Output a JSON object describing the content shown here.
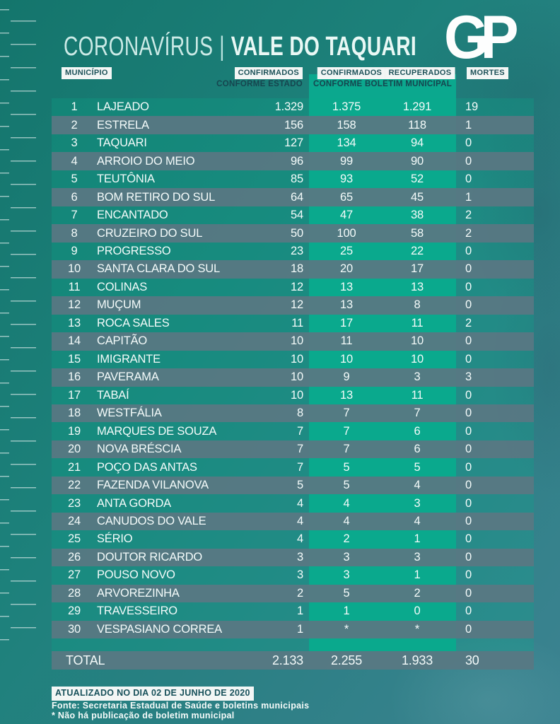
{
  "page": {
    "title_left": "CORONAVÍRUS",
    "title_sep": "|",
    "title_right": "VALE DO TAQUARI",
    "logo": "GP"
  },
  "chart_data": {
    "type": "table",
    "title": "CORONAVÍRUS | VALE DO TAQUARI",
    "header": {
      "municipio": "MUNICÍPIO",
      "confirmados_estado": "CONFIRMADOS",
      "confirmados_estado_sub": "CONFORME ESTADO",
      "confirmados_municipal": "CONFIRMADOS",
      "recuperados": "RECUPERADOS",
      "municipal_sub": "CONFORME BOLETIM MUNICIPAL",
      "mortes": "MORTES"
    },
    "columns": [
      "#",
      "MUNICÍPIO",
      "CONFIRMADOS CONFORME ESTADO",
      "CONFIRMADOS CONFORME BOLETIM MUNICIPAL",
      "RECUPERADOS CONFORME BOLETIM MUNICIPAL",
      "MORTES"
    ],
    "rows": [
      [
        "1",
        "LAJEADO",
        "1.329",
        "1.375",
        "1.291",
        "19"
      ],
      [
        "2",
        "ESTRELA",
        "156",
        "158",
        "118",
        "1"
      ],
      [
        "3",
        "TAQUARI",
        "127",
        "134",
        "94",
        "0"
      ],
      [
        "4",
        "ARROIO DO MEIO",
        "96",
        "99",
        "90",
        "0"
      ],
      [
        "5",
        "TEUTÔNIA",
        "85",
        "93",
        "52",
        "0"
      ],
      [
        "6",
        "BOM RETIRO DO SUL",
        "64",
        "65",
        "45",
        "1"
      ],
      [
        "7",
        "ENCANTADO",
        "54",
        "47",
        "38",
        "2"
      ],
      [
        "8",
        "CRUZEIRO DO SUL",
        "50",
        "100",
        "58",
        "2"
      ],
      [
        "9",
        "PROGRESSO",
        "23",
        "25",
        "22",
        "0"
      ],
      [
        "10",
        "SANTA CLARA DO SUL",
        "18",
        "20",
        "17",
        "0"
      ],
      [
        "11",
        "COLINAS",
        "12",
        "13",
        "13",
        "0"
      ],
      [
        "12",
        "MUÇUM",
        "12",
        "13",
        "8",
        "0"
      ],
      [
        "13",
        "ROCA SALES",
        "11",
        "17",
        "11",
        "2"
      ],
      [
        "14",
        "CAPITÃO",
        "10",
        "11",
        "10",
        "0"
      ],
      [
        "15",
        "IMIGRANTE",
        "10",
        "10",
        "10",
        "0"
      ],
      [
        "16",
        "PAVERAMA",
        "10",
        "9",
        "3",
        "3"
      ],
      [
        "17",
        "TABAÍ",
        "10",
        "13",
        "11",
        "0"
      ],
      [
        "18",
        "WESTFÁLIA",
        "8",
        "7",
        "7",
        "0"
      ],
      [
        "19",
        "MARQUES DE SOUZA",
        "7",
        "7",
        "6",
        "0"
      ],
      [
        "20",
        "NOVA BRÉSCIA",
        "7",
        "7",
        "6",
        "0"
      ],
      [
        "21",
        "POÇO DAS ANTAS",
        "7",
        "5",
        "5",
        "0"
      ],
      [
        "22",
        "FAZENDA VILANOVA",
        "5",
        "5",
        "4",
        "0"
      ],
      [
        "23",
        "ANTA GORDA",
        "4",
        "4",
        "3",
        "0"
      ],
      [
        "24",
        "CANUDOS DO VALE",
        "4",
        "4",
        "4",
        "0"
      ],
      [
        "25",
        "SÉRIO",
        "4",
        "2",
        "1",
        "0"
      ],
      [
        "26",
        "DOUTOR RICARDO",
        "3",
        "3",
        "3",
        "0"
      ],
      [
        "27",
        "POUSO NOVO",
        "3",
        "3",
        "1",
        "0"
      ],
      [
        "28",
        "ARVOREZINHA",
        "2",
        "5",
        "2",
        "0"
      ],
      [
        "29",
        "TRAVESSEIRO",
        "1",
        "1",
        "0",
        "0"
      ],
      [
        "30",
        "VESPASIANO CORREA",
        "1",
        "*",
        "*",
        "0"
      ]
    ],
    "total_row": [
      "TOTAL",
      "2.133",
      "2.255",
      "1.933",
      "30"
    ],
    "note": "* Não há publicação de boletim municipal"
  },
  "footer": {
    "updated": "ATUALIZADO NO DIA 02 DE JUNHO DE 2020",
    "source": "Fonte: Secretaria Estadual de Saúde e boletins municipais",
    "note": "* Não há publicação de boletim municipal"
  },
  "colors": {
    "background_top": "#14756c",
    "background_bottom": "#3c8391",
    "band_green": "#0ba88e",
    "row_gray": "#5a7983",
    "label_box": "#f3f6f5",
    "label_text": "#1d5158",
    "text": "#f4fbfa"
  }
}
